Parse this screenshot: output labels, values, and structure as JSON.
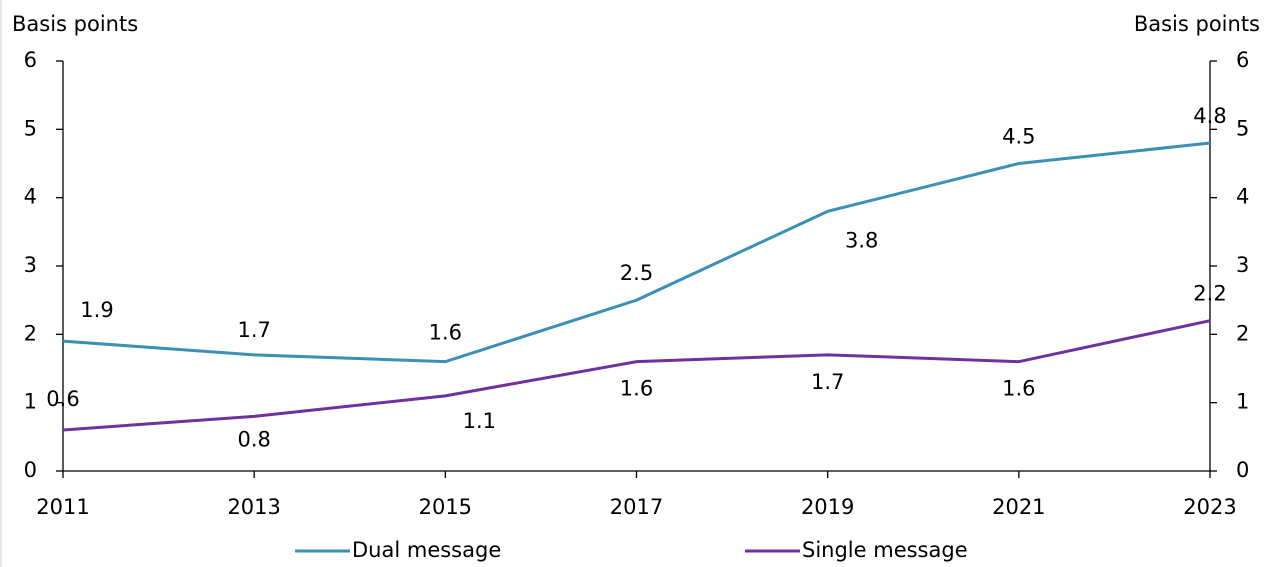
{
  "chart_data": {
    "type": "line",
    "y_label": "Basis points",
    "y2_label": "Basis points",
    "x": [
      2011,
      2013,
      2015,
      2017,
      2019,
      2021,
      2023
    ],
    "xlim": [
      2011,
      2023
    ],
    "xticks": [
      2011,
      2013,
      2015,
      2017,
      2019,
      2021,
      2023
    ],
    "ylim": [
      0,
      6
    ],
    "yticks": [
      0,
      1,
      2,
      3,
      4,
      5,
      6
    ],
    "y2lim": [
      0,
      6
    ],
    "y2ticks": [
      0,
      1,
      2,
      3,
      4,
      5,
      6
    ],
    "grid": false,
    "legend": "bottom",
    "series": [
      {
        "name": "Dual message",
        "color": "#3a90b5",
        "values": [
          1.9,
          1.7,
          1.6,
          2.5,
          3.8,
          4.5,
          4.8
        ]
      },
      {
        "name": "Single message",
        "color": "#7030a0",
        "values": [
          0.6,
          0.8,
          1.1,
          1.6,
          1.7,
          1.6,
          2.2
        ]
      }
    ]
  }
}
